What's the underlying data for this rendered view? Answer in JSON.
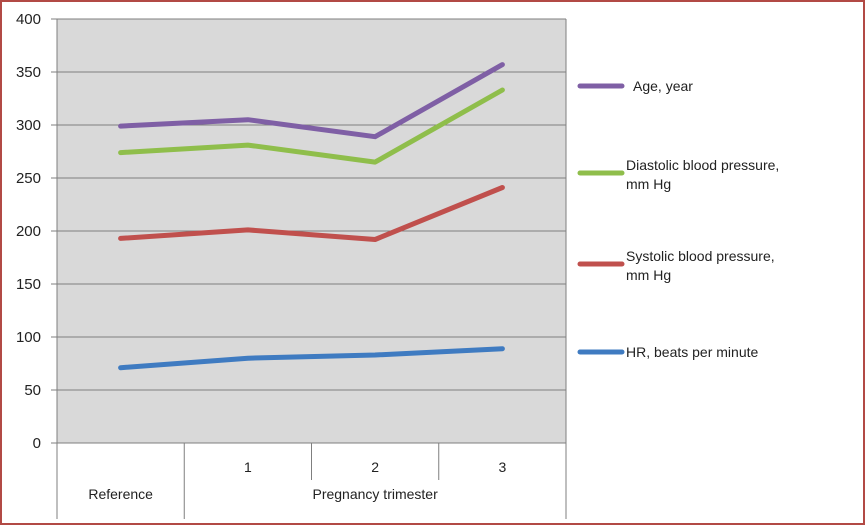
{
  "chart_data": {
    "type": "line",
    "title": "",
    "xlabel": "",
    "ylabel": "",
    "ylim": [
      0,
      400
    ],
    "yticks": [
      0,
      50,
      100,
      150,
      200,
      250,
      300,
      350,
      400
    ],
    "grid": true,
    "legend_position": "right",
    "categories": [
      "Reference",
      "1",
      "2",
      "3"
    ],
    "category_groups": [
      {
        "label": "Reference",
        "span": [
          "Reference"
        ]
      },
      {
        "label": "Pregnancy trimester",
        "span": [
          "1",
          "2",
          "3"
        ]
      }
    ],
    "series": [
      {
        "name": "Age, year",
        "color": "#7f5fa5",
        "values": [
          299,
          305,
          289,
          357
        ]
      },
      {
        "name": "Diastolic blood pressure, mm Hg",
        "color": "#8fbe4b",
        "values": [
          274,
          281,
          265,
          333
        ]
      },
      {
        "name": "Systolic blood pressure, mm Hg",
        "color": "#c0504d",
        "values": [
          193,
          201,
          192,
          241
        ]
      },
      {
        "name": "HR, beats per minute",
        "color": "#3f7bc1",
        "values": [
          71,
          80,
          83,
          89
        ]
      }
    ]
  }
}
